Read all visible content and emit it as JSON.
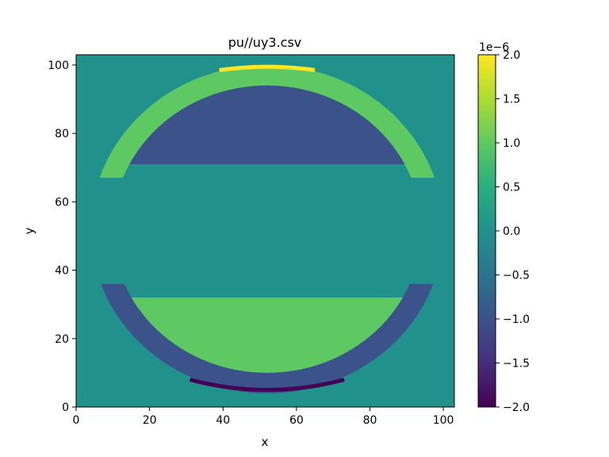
{
  "chart_data": {
    "type": "heatmap",
    "title": "pu//uy3.csv",
    "xlabel": "x",
    "ylabel": "y",
    "xlim": [
      0,
      103
    ],
    "ylim": [
      0,
      103
    ],
    "xticks": [
      0,
      20,
      40,
      60,
      80,
      100
    ],
    "yticks": [
      0,
      20,
      40,
      60,
      80,
      100
    ],
    "colormap": "viridis",
    "colorbar": {
      "vmin": -2.0,
      "vmax": 2.0,
      "exponent_label": "1e−6",
      "ticks": [
        2.0,
        1.5,
        1.0,
        0.5,
        0.0,
        -0.5,
        -1.0,
        -1.5,
        -2.0
      ],
      "tick_labels": [
        "2.0",
        "1.5",
        "1.0",
        "0.5",
        "0.0",
        "−0.5",
        "−1.0",
        "−1.5",
        "−2.0"
      ]
    },
    "background_value": 0.0,
    "regions": [
      {
        "name": "upper outer arc",
        "value": 1.0,
        "top_band": [
          67,
          100
        ],
        "cx": 52,
        "r_outer": 48,
        "r_inner": 42
      },
      {
        "name": "upper inner cap",
        "value": -1.0,
        "y_range": [
          71,
          95
        ],
        "cx": 52,
        "r": 42
      },
      {
        "name": "upper rim",
        "value": 2.0,
        "approx_y": 99
      },
      {
        "name": "lower outer arc",
        "value": -1.0,
        "bottom_band": [
          3,
          36
        ],
        "cx": 52,
        "r_outer": 48,
        "r_inner": 42
      },
      {
        "name": "lower inner cap",
        "value": 1.0,
        "y_range": [
          8,
          32
        ],
        "cx": 52,
        "r": 42
      },
      {
        "name": "lower rim",
        "value": -2.0,
        "approx_y": 4
      }
    ]
  }
}
